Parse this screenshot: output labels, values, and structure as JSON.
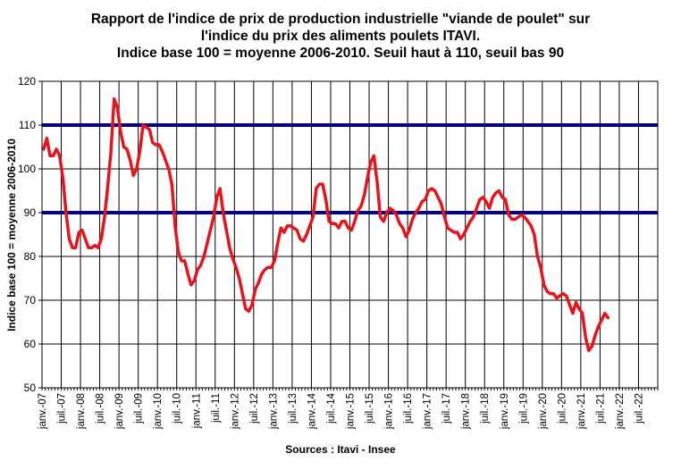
{
  "chart_data": {
    "type": "line",
    "title_lines": [
      "Rapport de l'indice de prix de production industrielle \"viande de poulet\" sur",
      "l'indice du prix des aliments poulets ITAVI.",
      "Indice base 100 = moyenne 2006-2010. Seuil haut à 110, seuil bas 90"
    ],
    "ylabel": "Indice base 100 = moyenne 2006-2010",
    "xlabel": "",
    "source": "Sources : Itavi - Insee",
    "ylim": [
      50,
      120
    ],
    "yticks": [
      50,
      60,
      70,
      80,
      90,
      100,
      110,
      120
    ],
    "grid": true,
    "thresholds": [
      110,
      90
    ],
    "threshold_color": "#000080",
    "line_color": "#e8141b",
    "start": "2007-01",
    "xtick_labels": [
      "janv.-07",
      "juil.-07",
      "janv.-08",
      "juil.-08",
      "janv.-09",
      "juil.-09",
      "janv.-10",
      "juil.-10",
      "janv.-11",
      "juil.-11",
      "janv.-12",
      "juil.-12",
      "janv.-13",
      "juil.-13",
      "janv.-14",
      "juil.-14",
      "janv.-15",
      "juil.-15",
      "janv.-16",
      "juil.-16",
      "janv.-17",
      "juil.-17",
      "janv.-18",
      "juil.-18",
      "janv.-19",
      "juil.-19",
      "janv.-20",
      "juil.-20",
      "janv.-21",
      "juil.-21",
      "janv.-22",
      "juil.-22"
    ],
    "values": [
      104.5,
      107,
      103,
      103,
      104.5,
      103,
      98,
      90,
      84,
      82,
      82,
      85.5,
      86,
      84,
      82,
      82,
      82.5,
      82,
      84,
      89,
      96,
      104,
      116,
      114,
      108.5,
      105,
      104.5,
      102,
      98.5,
      100,
      104,
      110,
      109.5,
      109,
      106,
      105.5,
      105.5,
      104,
      102,
      100,
      96.5,
      87,
      81,
      79,
      79,
      76,
      73.5,
      74.5,
      77,
      78,
      80,
      83,
      86,
      89,
      93.5,
      95.5,
      90,
      86,
      82,
      79.5,
      77.5,
      75,
      71.5,
      68,
      67.5,
      69,
      72.5,
      74,
      76,
      77,
      77.5,
      77.5,
      79,
      83,
      86.5,
      85.5,
      87,
      87,
      86.5,
      86,
      84,
      83.5,
      85,
      87,
      89,
      95.5,
      96.5,
      96.5,
      93,
      88,
      87.5,
      87.5,
      86.5,
      88,
      88,
      86.5,
      86,
      88,
      90.5,
      91.5,
      94,
      98,
      101.5,
      103,
      97,
      89,
      88,
      90,
      91,
      90.5,
      89.5,
      87.5,
      86.5,
      84.5,
      86,
      88.5,
      90,
      91,
      92.5,
      93,
      95,
      95.5,
      95,
      93.5,
      92,
      89,
      86.5,
      86,
      85.5,
      85.5,
      84,
      85,
      86.5,
      88,
      89,
      91,
      93,
      93.5,
      92.5,
      91,
      93.5,
      94.5,
      95,
      93.5,
      93,
      89.5,
      88.5,
      88.5,
      89,
      89.5,
      89,
      88,
      87,
      85,
      80,
      77.5,
      73.5,
      72,
      71.5,
      71.5,
      70.5,
      71,
      71.5,
      71,
      69,
      67,
      69.5,
      68,
      67,
      61.5,
      58.5,
      59.5,
      62,
      64,
      65.5,
      67,
      66
    ]
  }
}
